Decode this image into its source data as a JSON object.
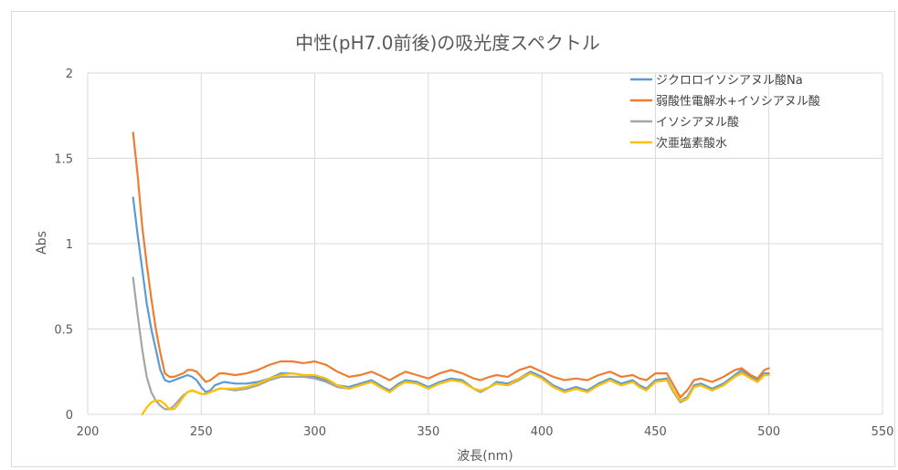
{
  "chart_data": {
    "type": "line",
    "title": "中性(pH7.0前後)の吸光度スペクトル",
    "xlabel": "波長(nm)",
    "ylabel": "Abs",
    "xlim": [
      200,
      550
    ],
    "ylim": [
      0,
      2
    ],
    "xticks": [
      "200",
      "250",
      "300",
      "350",
      "400",
      "450",
      "500",
      "550"
    ],
    "yticks": [
      "0",
      "0.5",
      "1",
      "1.5",
      "2"
    ],
    "grid": true,
    "legend_position": "top-right",
    "series": [
      {
        "name": "ジクロロイソシアヌル酸Na",
        "color": "#5b9bd5",
        "points": [
          [
            220,
            1.27
          ],
          [
            222,
            1.05
          ],
          [
            224,
            0.85
          ],
          [
            226,
            0.65
          ],
          [
            228,
            0.5
          ],
          [
            230,
            0.38
          ],
          [
            232,
            0.26
          ],
          [
            234,
            0.2
          ],
          [
            236,
            0.19
          ],
          [
            238,
            0.2
          ],
          [
            240,
            0.21
          ],
          [
            242,
            0.22
          ],
          [
            244,
            0.23
          ],
          [
            246,
            0.22
          ],
          [
            248,
            0.2
          ],
          [
            250,
            0.16
          ],
          [
            252,
            0.13
          ],
          [
            254,
            0.14
          ],
          [
            256,
            0.17
          ],
          [
            258,
            0.18
          ],
          [
            260,
            0.19
          ],
          [
            265,
            0.18
          ],
          [
            270,
            0.18
          ],
          [
            275,
            0.19
          ],
          [
            280,
            0.21
          ],
          [
            285,
            0.24
          ],
          [
            290,
            0.24
          ],
          [
            295,
            0.23
          ],
          [
            300,
            0.22
          ],
          [
            305,
            0.2
          ],
          [
            310,
            0.17
          ],
          [
            315,
            0.16
          ],
          [
            320,
            0.18
          ],
          [
            325,
            0.2
          ],
          [
            330,
            0.16
          ],
          [
            333,
            0.14
          ],
          [
            337,
            0.18
          ],
          [
            340,
            0.2
          ],
          [
            345,
            0.19
          ],
          [
            350,
            0.16
          ],
          [
            355,
            0.19
          ],
          [
            360,
            0.21
          ],
          [
            365,
            0.2
          ],
          [
            370,
            0.15
          ],
          [
            373,
            0.13
          ],
          [
            377,
            0.16
          ],
          [
            380,
            0.19
          ],
          [
            385,
            0.18
          ],
          [
            390,
            0.21
          ],
          [
            395,
            0.25
          ],
          [
            400,
            0.22
          ],
          [
            405,
            0.17
          ],
          [
            410,
            0.14
          ],
          [
            415,
            0.16
          ],
          [
            420,
            0.14
          ],
          [
            425,
            0.18
          ],
          [
            430,
            0.21
          ],
          [
            435,
            0.18
          ],
          [
            440,
            0.2
          ],
          [
            443,
            0.17
          ],
          [
            446,
            0.15
          ],
          [
            450,
            0.2
          ],
          [
            455,
            0.21
          ],
          [
            458,
            0.14
          ],
          [
            461,
            0.08
          ],
          [
            464,
            0.1
          ],
          [
            467,
            0.17
          ],
          [
            470,
            0.18
          ],
          [
            475,
            0.15
          ],
          [
            480,
            0.18
          ],
          [
            485,
            0.23
          ],
          [
            488,
            0.26
          ],
          [
            492,
            0.22
          ],
          [
            495,
            0.2
          ],
          [
            498,
            0.24
          ],
          [
            500,
            0.24
          ]
        ]
      },
      {
        "name": "弱酸性電解水+イソシアヌル酸",
        "color": "#ed7d31",
        "points": [
          [
            220,
            1.65
          ],
          [
            222,
            1.4
          ],
          [
            224,
            1.1
          ],
          [
            226,
            0.88
          ],
          [
            228,
            0.68
          ],
          [
            230,
            0.5
          ],
          [
            232,
            0.36
          ],
          [
            234,
            0.24
          ],
          [
            236,
            0.22
          ],
          [
            238,
            0.22
          ],
          [
            240,
            0.23
          ],
          [
            242,
            0.24
          ],
          [
            244,
            0.26
          ],
          [
            246,
            0.26
          ],
          [
            248,
            0.25
          ],
          [
            250,
            0.22
          ],
          [
            252,
            0.19
          ],
          [
            254,
            0.2
          ],
          [
            256,
            0.22
          ],
          [
            258,
            0.24
          ],
          [
            260,
            0.24
          ],
          [
            265,
            0.23
          ],
          [
            270,
            0.24
          ],
          [
            275,
            0.26
          ],
          [
            280,
            0.29
          ],
          [
            285,
            0.31
          ],
          [
            290,
            0.31
          ],
          [
            295,
            0.3
          ],
          [
            300,
            0.31
          ],
          [
            305,
            0.29
          ],
          [
            310,
            0.25
          ],
          [
            315,
            0.22
          ],
          [
            320,
            0.23
          ],
          [
            325,
            0.25
          ],
          [
            330,
            0.22
          ],
          [
            333,
            0.2
          ],
          [
            337,
            0.23
          ],
          [
            340,
            0.25
          ],
          [
            345,
            0.23
          ],
          [
            350,
            0.21
          ],
          [
            355,
            0.24
          ],
          [
            360,
            0.26
          ],
          [
            365,
            0.24
          ],
          [
            370,
            0.21
          ],
          [
            373,
            0.2
          ],
          [
            377,
            0.22
          ],
          [
            380,
            0.23
          ],
          [
            385,
            0.22
          ],
          [
            390,
            0.26
          ],
          [
            395,
            0.28
          ],
          [
            400,
            0.25
          ],
          [
            405,
            0.22
          ],
          [
            410,
            0.2
          ],
          [
            415,
            0.21
          ],
          [
            420,
            0.2
          ],
          [
            425,
            0.23
          ],
          [
            430,
            0.25
          ],
          [
            435,
            0.22
          ],
          [
            440,
            0.23
          ],
          [
            443,
            0.21
          ],
          [
            446,
            0.2
          ],
          [
            450,
            0.24
          ],
          [
            455,
            0.24
          ],
          [
            458,
            0.17
          ],
          [
            461,
            0.1
          ],
          [
            464,
            0.14
          ],
          [
            467,
            0.2
          ],
          [
            470,
            0.21
          ],
          [
            475,
            0.19
          ],
          [
            480,
            0.22
          ],
          [
            485,
            0.26
          ],
          [
            488,
            0.27
          ],
          [
            492,
            0.23
          ],
          [
            495,
            0.21
          ],
          [
            498,
            0.26
          ],
          [
            500,
            0.27
          ]
        ]
      },
      {
        "name": "イソシアヌル酸",
        "color": "#a5a5a5",
        "points": [
          [
            220,
            0.8
          ],
          [
            222,
            0.58
          ],
          [
            224,
            0.38
          ],
          [
            226,
            0.22
          ],
          [
            228,
            0.13
          ],
          [
            230,
            0.08
          ],
          [
            232,
            0.05
          ],
          [
            234,
            0.03
          ],
          [
            236,
            0.03
          ],
          [
            238,
            0.05
          ],
          [
            240,
            0.08
          ],
          [
            242,
            0.11
          ],
          [
            244,
            0.13
          ],
          [
            246,
            0.14
          ],
          [
            248,
            0.13
          ],
          [
            250,
            0.12
          ],
          [
            252,
            0.12
          ],
          [
            254,
            0.13
          ],
          [
            256,
            0.14
          ],
          [
            258,
            0.15
          ],
          [
            260,
            0.15
          ],
          [
            265,
            0.14
          ],
          [
            270,
            0.15
          ],
          [
            275,
            0.17
          ],
          [
            280,
            0.2
          ],
          [
            285,
            0.22
          ],
          [
            290,
            0.22
          ],
          [
            295,
            0.22
          ],
          [
            300,
            0.21
          ],
          [
            305,
            0.19
          ],
          [
            310,
            0.16
          ],
          [
            315,
            0.15
          ],
          [
            320,
            0.17
          ],
          [
            325,
            0.19
          ],
          [
            330,
            0.15
          ],
          [
            333,
            0.13
          ],
          [
            337,
            0.17
          ],
          [
            340,
            0.19
          ],
          [
            345,
            0.18
          ],
          [
            350,
            0.15
          ],
          [
            355,
            0.18
          ],
          [
            360,
            0.2
          ],
          [
            365,
            0.19
          ],
          [
            370,
            0.15
          ],
          [
            373,
            0.13
          ],
          [
            377,
            0.16
          ],
          [
            380,
            0.18
          ],
          [
            385,
            0.17
          ],
          [
            390,
            0.2
          ],
          [
            395,
            0.24
          ],
          [
            400,
            0.21
          ],
          [
            405,
            0.16
          ],
          [
            410,
            0.13
          ],
          [
            415,
            0.15
          ],
          [
            420,
            0.13
          ],
          [
            425,
            0.17
          ],
          [
            430,
            0.2
          ],
          [
            435,
            0.17
          ],
          [
            440,
            0.19
          ],
          [
            443,
            0.16
          ],
          [
            446,
            0.14
          ],
          [
            450,
            0.19
          ],
          [
            455,
            0.2
          ],
          [
            458,
            0.13
          ],
          [
            461,
            0.07
          ],
          [
            464,
            0.09
          ],
          [
            467,
            0.16
          ],
          [
            470,
            0.17
          ],
          [
            475,
            0.14
          ],
          [
            480,
            0.17
          ],
          [
            485,
            0.22
          ],
          [
            488,
            0.25
          ],
          [
            492,
            0.21
          ],
          [
            495,
            0.19
          ],
          [
            498,
            0.23
          ],
          [
            500,
            0.23
          ]
        ]
      },
      {
        "name": "次亜塩素酸水",
        "color": "#ffc000",
        "points": [
          [
            224,
            0.0
          ],
          [
            226,
            0.04
          ],
          [
            228,
            0.07
          ],
          [
            230,
            0.08
          ],
          [
            232,
            0.08
          ],
          [
            234,
            0.06
          ],
          [
            236,
            0.03
          ],
          [
            238,
            0.03
          ],
          [
            240,
            0.06
          ],
          [
            242,
            0.1
          ],
          [
            244,
            0.13
          ],
          [
            246,
            0.14
          ],
          [
            248,
            0.13
          ],
          [
            250,
            0.12
          ],
          [
            252,
            0.12
          ],
          [
            254,
            0.13
          ],
          [
            256,
            0.14
          ],
          [
            258,
            0.15
          ],
          [
            260,
            0.15
          ],
          [
            265,
            0.15
          ],
          [
            270,
            0.16
          ],
          [
            275,
            0.18
          ],
          [
            280,
            0.21
          ],
          [
            285,
            0.23
          ],
          [
            290,
            0.24
          ],
          [
            295,
            0.23
          ],
          [
            300,
            0.23
          ],
          [
            305,
            0.21
          ],
          [
            310,
            0.17
          ],
          [
            315,
            0.15
          ],
          [
            320,
            0.17
          ],
          [
            325,
            0.19
          ],
          [
            330,
            0.15
          ],
          [
            333,
            0.13
          ],
          [
            337,
            0.17
          ],
          [
            340,
            0.19
          ],
          [
            345,
            0.18
          ],
          [
            350,
            0.15
          ],
          [
            355,
            0.18
          ],
          [
            360,
            0.2
          ],
          [
            365,
            0.19
          ],
          [
            370,
            0.15
          ],
          [
            373,
            0.14
          ],
          [
            377,
            0.16
          ],
          [
            380,
            0.18
          ],
          [
            385,
            0.17
          ],
          [
            390,
            0.21
          ],
          [
            395,
            0.24
          ],
          [
            400,
            0.21
          ],
          [
            405,
            0.16
          ],
          [
            410,
            0.13
          ],
          [
            415,
            0.15
          ],
          [
            420,
            0.13
          ],
          [
            425,
            0.17
          ],
          [
            430,
            0.2
          ],
          [
            435,
            0.17
          ],
          [
            440,
            0.19
          ],
          [
            443,
            0.16
          ],
          [
            446,
            0.14
          ],
          [
            450,
            0.19
          ],
          [
            455,
            0.2
          ],
          [
            458,
            0.14
          ],
          [
            461,
            0.08
          ],
          [
            464,
            0.09
          ],
          [
            467,
            0.16
          ],
          [
            470,
            0.17
          ],
          [
            475,
            0.14
          ],
          [
            480,
            0.17
          ],
          [
            485,
            0.22
          ],
          [
            488,
            0.24
          ],
          [
            492,
            0.21
          ],
          [
            495,
            0.19
          ],
          [
            498,
            0.23
          ],
          [
            500,
            0.23
          ]
        ]
      }
    ]
  }
}
